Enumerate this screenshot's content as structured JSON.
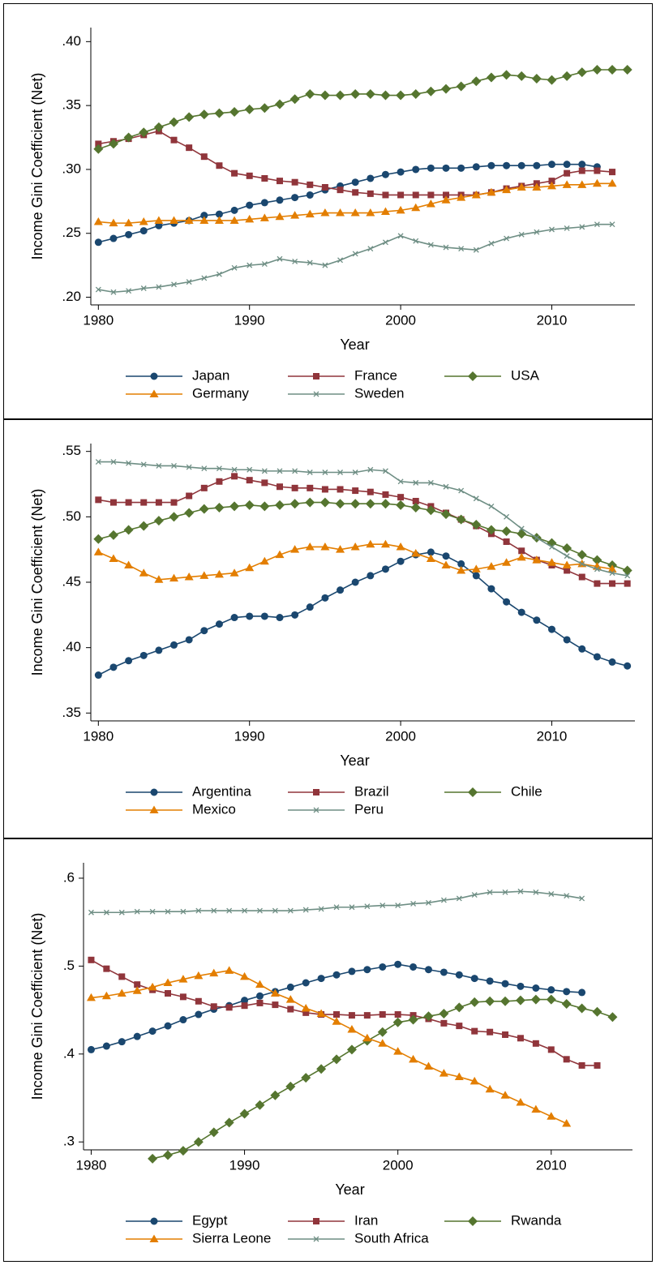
{
  "chart_data": [
    {
      "type": "line",
      "ylabel": "Income Gini Coefficient (Net)",
      "xlabel": "Year",
      "x": [
        1980,
        1981,
        1982,
        1983,
        1984,
        1985,
        1986,
        1987,
        1988,
        1989,
        1990,
        1991,
        1992,
        1993,
        1994,
        1995,
        1996,
        1997,
        1998,
        1999,
        2000,
        2001,
        2002,
        2003,
        2004,
        2005,
        2006,
        2007,
        2008,
        2009,
        2010,
        2011,
        2012,
        2013,
        2014,
        2015
      ],
      "xlim": [
        1979.5,
        2015.5
      ],
      "xticks": [
        1980,
        1990,
        2000,
        2010
      ],
      "ylim": [
        0.194,
        0.411
      ],
      "yticks": [
        {
          "value": 0.2,
          "label": ".20"
        },
        {
          "value": 0.25,
          "label": ".25"
        },
        {
          "value": 0.3,
          "label": ".30"
        },
        {
          "value": 0.35,
          "label": ".35"
        },
        {
          "value": 0.4,
          "label": ".40"
        }
      ],
      "series": [
        {
          "name": "Japan",
          "color": "#1a476f",
          "marker": "circle",
          "values": [
            0.243,
            0.246,
            0.249,
            0.252,
            0.256,
            0.258,
            0.26,
            0.264,
            0.265,
            0.268,
            0.272,
            0.274,
            0.276,
            0.278,
            0.28,
            0.284,
            0.287,
            0.29,
            0.293,
            0.296,
            0.298,
            0.3,
            0.301,
            0.301,
            0.301,
            0.302,
            0.303,
            0.303,
            0.303,
            0.303,
            0.304,
            0.304,
            0.304,
            0.302,
            null,
            null
          ]
        },
        {
          "name": "France",
          "color": "#90353b",
          "marker": "square",
          "values": [
            0.32,
            0.322,
            0.324,
            0.327,
            0.33,
            0.323,
            0.317,
            0.31,
            0.303,
            0.297,
            0.295,
            0.293,
            0.291,
            0.29,
            0.288,
            0.286,
            0.284,
            0.282,
            0.281,
            0.28,
            0.28,
            0.28,
            0.28,
            0.28,
            0.28,
            0.28,
            0.282,
            0.285,
            0.287,
            0.289,
            0.291,
            0.297,
            0.299,
            0.299,
            0.298,
            null
          ]
        },
        {
          "name": "USA",
          "color": "#55752f",
          "marker": "diamond",
          "values": [
            0.316,
            0.32,
            0.325,
            0.329,
            0.333,
            0.337,
            0.341,
            0.343,
            0.344,
            0.345,
            0.347,
            0.348,
            0.351,
            0.355,
            0.359,
            0.358,
            0.358,
            0.359,
            0.359,
            0.358,
            0.358,
            0.359,
            0.361,
            0.363,
            0.365,
            0.369,
            0.372,
            0.374,
            0.373,
            0.371,
            0.37,
            0.373,
            0.376,
            0.378,
            0.378,
            0.378
          ]
        },
        {
          "name": "Germany",
          "color": "#e37e00",
          "marker": "triangle",
          "values": [
            0.259,
            0.258,
            0.258,
            0.259,
            0.26,
            0.26,
            0.26,
            0.26,
            0.26,
            0.26,
            0.261,
            0.262,
            0.263,
            0.264,
            0.265,
            0.266,
            0.266,
            0.266,
            0.266,
            0.267,
            0.268,
            0.27,
            0.273,
            0.276,
            0.278,
            0.28,
            0.282,
            0.284,
            0.286,
            0.286,
            0.287,
            0.288,
            0.288,
            0.289,
            0.289,
            null
          ]
        },
        {
          "name": "Sweden",
          "color": "#6e8e84",
          "marker": "x",
          "values": [
            0.206,
            0.204,
            0.205,
            0.207,
            0.208,
            0.21,
            0.212,
            0.215,
            0.218,
            0.223,
            0.225,
            0.226,
            0.23,
            0.228,
            0.227,
            0.225,
            0.229,
            0.234,
            0.238,
            0.243,
            0.248,
            0.244,
            0.241,
            0.239,
            0.238,
            0.237,
            0.242,
            0.246,
            0.249,
            0.251,
            0.253,
            0.254,
            0.255,
            0.257,
            0.257,
            null
          ]
        }
      ]
    },
    {
      "type": "line",
      "ylabel": "Income Gini Coefficient (Net)",
      "xlabel": "Year",
      "x": [
        1980,
        1981,
        1982,
        1983,
        1984,
        1985,
        1986,
        1987,
        1988,
        1989,
        1990,
        1991,
        1992,
        1993,
        1994,
        1995,
        1996,
        1997,
        1998,
        1999,
        2000,
        2001,
        2002,
        2003,
        2004,
        2005,
        2006,
        2007,
        2008,
        2009,
        2010,
        2011,
        2012,
        2013,
        2014,
        2015
      ],
      "xlim": [
        1979.5,
        2015.5
      ],
      "xticks": [
        1980,
        1990,
        2000,
        2010
      ],
      "ylim": [
        0.344,
        0.556
      ],
      "yticks": [
        {
          "value": 0.35,
          "label": ".35"
        },
        {
          "value": 0.4,
          "label": ".40"
        },
        {
          "value": 0.45,
          "label": ".45"
        },
        {
          "value": 0.5,
          "label": ".50"
        },
        {
          "value": 0.55,
          "label": ".55"
        }
      ],
      "series": [
        {
          "name": "Argentina",
          "color": "#1a476f",
          "marker": "circle",
          "values": [
            0.379,
            0.385,
            0.39,
            0.394,
            0.398,
            0.402,
            0.406,
            0.413,
            0.418,
            0.423,
            0.424,
            0.424,
            0.423,
            0.425,
            0.431,
            0.438,
            0.444,
            0.45,
            0.455,
            0.46,
            0.466,
            0.471,
            0.473,
            0.47,
            0.464,
            0.455,
            0.445,
            0.435,
            0.427,
            0.421,
            0.414,
            0.406,
            0.399,
            0.393,
            0.389,
            0.386
          ]
        },
        {
          "name": "Brazil",
          "color": "#90353b",
          "marker": "square",
          "values": [
            0.513,
            0.511,
            0.511,
            0.511,
            0.511,
            0.511,
            0.516,
            0.522,
            0.527,
            0.531,
            0.528,
            0.526,
            0.523,
            0.522,
            0.522,
            0.521,
            0.521,
            0.52,
            0.519,
            0.517,
            0.515,
            0.512,
            0.508,
            0.503,
            0.498,
            0.493,
            0.487,
            0.481,
            0.474,
            0.467,
            0.463,
            0.459,
            0.454,
            0.449,
            0.449,
            0.449
          ]
        },
        {
          "name": "Chile",
          "color": "#55752f",
          "marker": "diamond",
          "values": [
            0.483,
            0.486,
            0.49,
            0.493,
            0.497,
            0.5,
            0.503,
            0.506,
            0.507,
            0.508,
            0.509,
            0.508,
            0.509,
            0.51,
            0.511,
            0.511,
            0.51,
            0.51,
            0.51,
            0.51,
            0.509,
            0.507,
            0.505,
            0.502,
            0.498,
            0.494,
            0.49,
            0.489,
            0.487,
            0.484,
            0.48,
            0.476,
            0.471,
            0.467,
            0.463,
            0.459
          ]
        },
        {
          "name": "Mexico",
          "color": "#e37e00",
          "marker": "triangle",
          "values": [
            0.473,
            0.468,
            0.463,
            0.457,
            0.452,
            0.453,
            0.454,
            0.455,
            0.456,
            0.457,
            0.461,
            0.466,
            0.471,
            0.475,
            0.477,
            0.477,
            0.475,
            0.477,
            0.479,
            0.479,
            0.477,
            0.472,
            0.468,
            0.463,
            0.459,
            0.46,
            0.462,
            0.465,
            0.469,
            0.467,
            0.465,
            0.463,
            0.464,
            0.462,
            0.46,
            null
          ]
        },
        {
          "name": "Peru",
          "color": "#6e8e84",
          "marker": "x",
          "values": [
            0.542,
            0.542,
            0.541,
            0.54,
            0.539,
            0.539,
            0.538,
            0.537,
            0.537,
            0.536,
            0.536,
            0.535,
            0.535,
            0.535,
            0.534,
            0.534,
            0.534,
            0.534,
            0.536,
            0.535,
            0.527,
            0.526,
            0.526,
            0.523,
            0.52,
            0.514,
            0.508,
            0.5,
            0.491,
            0.484,
            0.477,
            0.47,
            0.464,
            0.46,
            0.457,
            0.455
          ]
        }
      ]
    },
    {
      "type": "line",
      "ylabel": "Income Gini Coefficient (Net)",
      "xlabel": "Year",
      "x": [
        1980,
        1981,
        1982,
        1983,
        1984,
        1985,
        1986,
        1987,
        1988,
        1989,
        1990,
        1991,
        1992,
        1993,
        1994,
        1995,
        1996,
        1997,
        1998,
        1999,
        2000,
        2001,
        2002,
        2003,
        2004,
        2005,
        2006,
        2007,
        2008,
        2009,
        2010,
        2011,
        2012,
        2013,
        2014,
        2015
      ],
      "xlim": [
        1979.5,
        2015.3
      ],
      "xticks": [
        1980,
        1990,
        2000,
        2010
      ],
      "ylim": [
        0.291,
        0.6175
      ],
      "yticks": [
        {
          "value": 0.3,
          "label": ".3"
        },
        {
          "value": 0.4,
          "label": ".4"
        },
        {
          "value": 0.5,
          "label": ".5"
        },
        {
          "value": 0.6,
          "label": ".6"
        }
      ],
      "series": [
        {
          "name": "Egypt",
          "color": "#1a476f",
          "marker": "circle",
          "values": [
            0.405,
            0.409,
            0.414,
            0.42,
            0.426,
            0.432,
            0.439,
            0.445,
            0.451,
            0.455,
            0.461,
            0.466,
            0.471,
            0.476,
            0.481,
            0.486,
            0.49,
            0.494,
            0.496,
            0.499,
            0.502,
            0.499,
            0.496,
            0.493,
            0.49,
            0.486,
            0.483,
            0.48,
            0.477,
            0.475,
            0.473,
            0.471,
            0.47,
            null,
            null,
            null
          ]
        },
        {
          "name": "Iran",
          "color": "#90353b",
          "marker": "square",
          "values": [
            0.507,
            0.497,
            0.488,
            0.479,
            0.473,
            0.469,
            0.465,
            0.46,
            0.454,
            0.453,
            0.455,
            0.458,
            0.456,
            0.451,
            0.447,
            0.445,
            0.445,
            0.444,
            0.444,
            0.445,
            0.445,
            0.444,
            0.44,
            0.435,
            0.432,
            0.426,
            0.425,
            0.422,
            0.418,
            0.412,
            0.405,
            0.394,
            0.387,
            0.387,
            null,
            null
          ]
        },
        {
          "name": "Rwanda",
          "color": "#55752f",
          "marker": "diamond",
          "values": [
            null,
            null,
            null,
            null,
            0.281,
            0.285,
            0.29,
            0.3,
            0.311,
            0.322,
            0.332,
            0.342,
            0.353,
            0.363,
            0.373,
            0.383,
            0.394,
            0.405,
            0.415,
            0.425,
            0.436,
            0.439,
            0.443,
            0.446,
            0.453,
            0.459,
            0.46,
            0.46,
            0.461,
            0.462,
            0.462,
            0.457,
            0.452,
            0.448,
            0.442,
            null
          ]
        },
        {
          "name": "Sierra Leone",
          "color": "#e37e00",
          "marker": "triangle",
          "values": [
            0.464,
            0.466,
            0.469,
            0.472,
            0.476,
            0.481,
            0.485,
            0.489,
            0.492,
            0.495,
            0.488,
            0.479,
            0.469,
            0.462,
            0.452,
            0.446,
            0.437,
            0.428,
            0.418,
            0.412,
            0.403,
            0.394,
            0.386,
            0.378,
            0.374,
            0.369,
            0.36,
            0.353,
            0.345,
            0.337,
            0.329,
            0.321,
            null,
            null,
            null,
            null
          ]
        },
        {
          "name": "South Africa",
          "color": "#6e8e84",
          "marker": "x",
          "values": [
            0.561,
            0.561,
            0.561,
            0.562,
            0.562,
            0.562,
            0.562,
            0.563,
            0.563,
            0.563,
            0.563,
            0.563,
            0.563,
            0.563,
            0.564,
            0.565,
            0.567,
            0.567,
            0.568,
            0.569,
            0.569,
            0.571,
            0.572,
            0.575,
            0.577,
            0.581,
            0.584,
            0.584,
            0.585,
            0.584,
            0.582,
            0.58,
            0.577,
            null,
            null,
            null
          ]
        }
      ]
    }
  ]
}
